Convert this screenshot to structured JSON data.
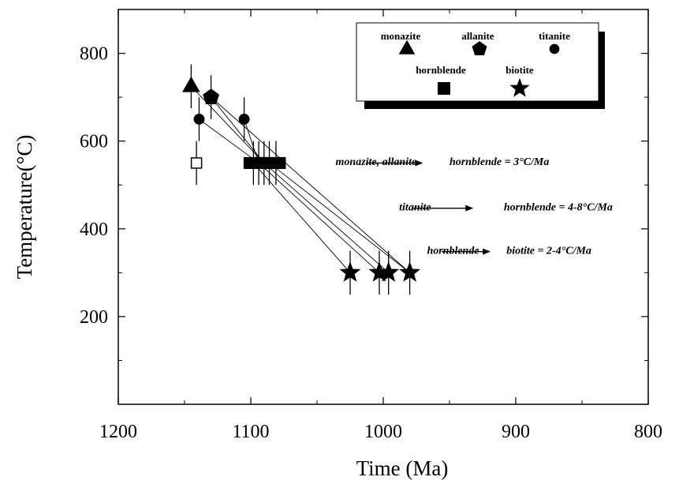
{
  "chart_data": {
    "type": "scatter",
    "xlabel": "Time (Ma)",
    "ylabel": "Temperature(°C)",
    "xlim": [
      1200,
      800
    ],
    "ylim": [
      0,
      900
    ],
    "x_reversed": true,
    "x_ticks": [
      1200,
      1100,
      1000,
      900,
      800
    ],
    "x_tick_labels": [
      "1200",
      "1100",
      "1000",
      "900",
      "800"
    ],
    "x_minor_ticks": [
      1150,
      1050,
      950,
      850
    ],
    "y_ticks": [
      200,
      400,
      600,
      800
    ],
    "y_tick_labels": [
      "200",
      "400",
      "600",
      "800"
    ],
    "y_minor_ticks": [
      100,
      300,
      500,
      700
    ],
    "legend": {
      "placement": "top-right",
      "entries": [
        {
          "label": "monazite",
          "marker": "triangle"
        },
        {
          "label": "allanite",
          "marker": "pentagon"
        },
        {
          "label": "titanite",
          "marker": "circle"
        },
        {
          "label": "hornblende",
          "marker": "square"
        },
        {
          "label": "biotite",
          "marker": "star"
        }
      ]
    },
    "series": [
      {
        "name": "monazite",
        "marker": "triangle",
        "filled": true,
        "points": [
          {
            "x": 1145,
            "y": 725,
            "yerr": 50
          }
        ]
      },
      {
        "name": "allanite",
        "marker": "pentagon",
        "filled": true,
        "points": [
          {
            "x": 1130,
            "y": 700,
            "yerr": 50
          }
        ]
      },
      {
        "name": "titanite",
        "marker": "circle",
        "filled": true,
        "points": [
          {
            "x": 1139,
            "y": 650,
            "yerr": 50
          },
          {
            "x": 1105,
            "y": 650,
            "yerr": 50
          }
        ]
      },
      {
        "name": "titanite",
        "marker": "square",
        "filled": false,
        "points": [
          {
            "x": 1141,
            "y": 550,
            "yerr": 50
          }
        ]
      },
      {
        "name": "hornblende",
        "marker": "square",
        "filled": true,
        "points": [
          {
            "x": 1098,
            "y": 550,
            "yerr": 50
          },
          {
            "x": 1094,
            "y": 550,
            "yerr": 50
          },
          {
            "x": 1090,
            "y": 550,
            "yerr": 50
          },
          {
            "x": 1086,
            "y": 550,
            "yerr": 50
          },
          {
            "x": 1081,
            "y": 550,
            "yerr": 50
          }
        ]
      },
      {
        "name": "biotite",
        "marker": "star",
        "filled": true,
        "points": [
          {
            "x": 1025,
            "y": 300,
            "yerr": 50
          },
          {
            "x": 1003,
            "y": 300,
            "yerr": 50
          },
          {
            "x": 996,
            "y": 300,
            "yerr": 50
          },
          {
            "x": 980,
            "y": 300,
            "yerr": 50
          }
        ]
      }
    ],
    "connecting_lines": [
      {
        "from": [
          1145,
          725
        ],
        "to": [
          1090,
          550
        ]
      },
      {
        "from": [
          1130,
          700
        ],
        "to": [
          1090,
          550
        ]
      },
      {
        "from": [
          1139,
          650
        ],
        "to": [
          1094,
          550
        ]
      },
      {
        "from": [
          1105,
          650
        ],
        "to": [
          1094,
          550
        ]
      },
      {
        "from": [
          1098,
          550
        ],
        "to": [
          1025,
          300
        ]
      },
      {
        "from": [
          1094,
          550
        ],
        "to": [
          1003,
          300
        ]
      },
      {
        "from": [
          1090,
          550
        ],
        "to": [
          996,
          300
        ]
      },
      {
        "from": [
          1086,
          550
        ],
        "to": [
          980,
          300
        ]
      },
      {
        "from": [
          1130,
          700
        ],
        "to": [
          980,
          300
        ]
      }
    ],
    "annotations": [
      {
        "lines": [
          {
            "text": "monazite, allanite",
            "x": 1036,
            "y": 545
          },
          {
            "text": "hornblende = 3°C/Ma",
            "x": 950,
            "y": 545
          }
        ],
        "arrow_from": [
          1013,
          550
        ],
        "arrow_to": [
          970,
          550
        ]
      },
      {
        "lines": [
          {
            "text": "titanite",
            "x": 988,
            "y": 442
          },
          {
            "text": "hornblende = 4-8°C/Ma",
            "x": 909,
            "y": 442
          }
        ],
        "arrow_from": [
          978,
          447
        ],
        "arrow_to": [
          932,
          447
        ]
      },
      {
        "lines": [
          {
            "text": "hornblende",
            "x": 967,
            "y": 343
          },
          {
            "text": "biotite = 2-4°C/Ma",
            "x": 907,
            "y": 343
          }
        ],
        "arrow_from": [
          956,
          348
        ],
        "arrow_to": [
          919,
          348
        ]
      }
    ]
  }
}
